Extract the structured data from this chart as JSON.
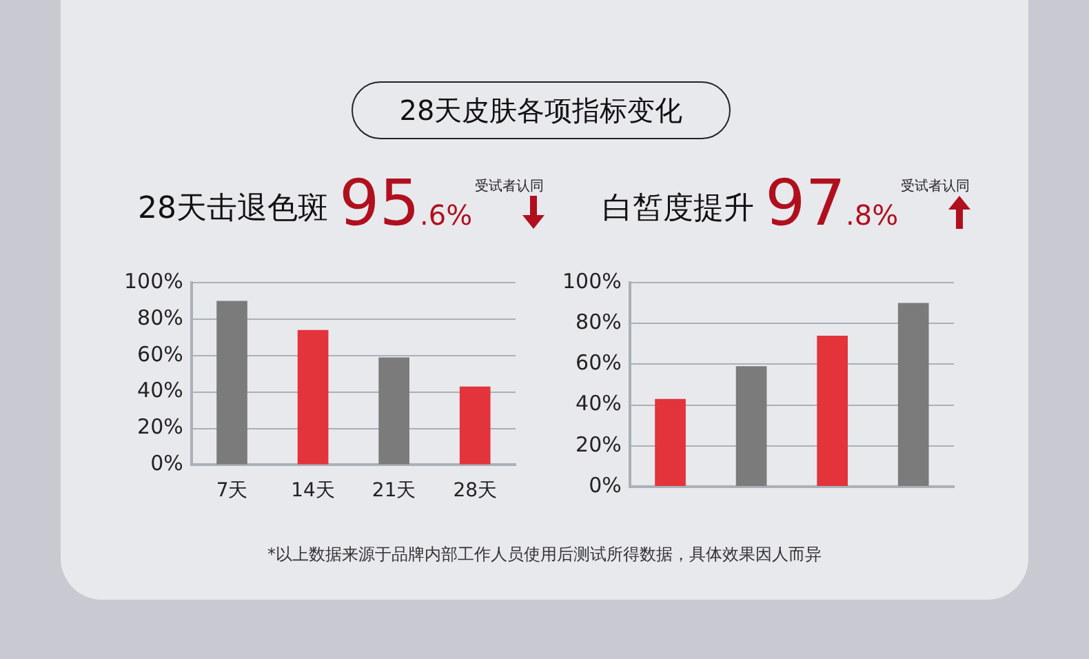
{
  "chart_data": [
    {
      "type": "bar",
      "title": "28天击退色斑",
      "categories": [
        "7天",
        "14天",
        "21天",
        "28天"
      ],
      "values": [
        90,
        74,
        59,
        43
      ],
      "colors": [
        "#7b7b7b",
        "#e3333b",
        "#7b7b7b",
        "#e3333b"
      ],
      "ylim": [
        0,
        100
      ],
      "yticks": [
        {
          "value": 0,
          "label": "0%"
        },
        {
          "value": 20,
          "label": "20%"
        },
        {
          "value": 40,
          "label": "40%"
        },
        {
          "value": 60,
          "label": "60%"
        },
        {
          "value": 80,
          "label": "80%"
        },
        {
          "value": 100,
          "label": "100%"
        }
      ],
      "grid": "y",
      "legend": false,
      "annotations": [
        "95.6%",
        "受试者认同",
        "28天皮肤各项指标变化",
        "*以上数据来源于品牌内部工作人员使用后测试所得数据，具体效果因人而异"
      ]
    },
    {
      "type": "bar",
      "title": "白皙度提升",
      "categories": [
        null,
        null,
        null,
        null
      ],
      "values": [
        43,
        59,
        74,
        90
      ],
      "colors": [
        "#e3333b",
        "#7b7b7b",
        "#e3333b",
        "#7b7b7b"
      ],
      "ylim": [
        0,
        100
      ],
      "yticks": [
        {
          "value": 0,
          "label": "0%"
        },
        {
          "value": 20,
          "label": "20%"
        },
        {
          "value": 40,
          "label": "40%"
        },
        {
          "value": 60,
          "label": "60%"
        },
        {
          "value": 80,
          "label": "80%"
        },
        {
          "value": 100,
          "label": "100%"
        }
      ],
      "grid": "y",
      "legend": false,
      "annotations": [
        "97.8%",
        "受试者认同"
      ]
    }
  ]
}
